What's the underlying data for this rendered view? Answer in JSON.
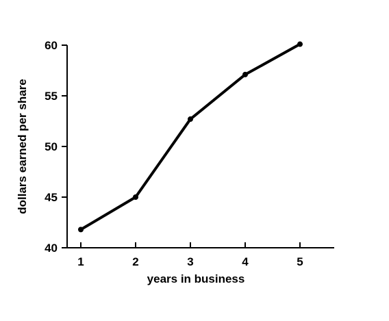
{
  "chart_data": {
    "type": "line",
    "title": "",
    "xlabel": "years in business",
    "ylabel": "dollars earned per share",
    "x": [
      1,
      2,
      3,
      4,
      5
    ],
    "series": [
      {
        "values": [
          41.8,
          45.0,
          52.7,
          57.1,
          60.1
        ]
      }
    ],
    "xticks": [
      "1",
      "2",
      "3",
      "4",
      "5"
    ],
    "yticks": [
      "40",
      "45",
      "50",
      "55",
      "60"
    ],
    "ylim": [
      40,
      60
    ],
    "grid": false,
    "color": "#000000"
  }
}
